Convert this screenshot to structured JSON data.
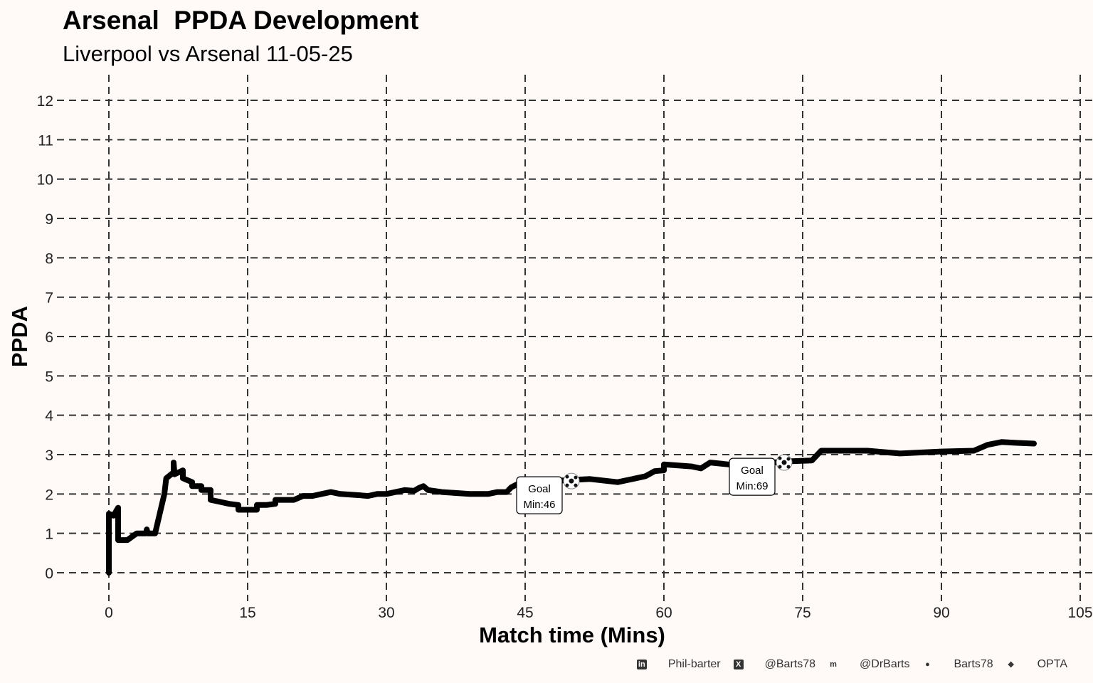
{
  "title": "Arsenal  PPDA Development",
  "subtitle": "Liverpool vs Arsenal 11-05-25",
  "footer": [
    {
      "icon": "linkedin-icon",
      "glyph": "in",
      "text": "Phil-barter"
    },
    {
      "icon": "x-icon",
      "glyph": "X",
      "text": "@Barts78"
    },
    {
      "icon": "mastodon-icon",
      "glyph": "m",
      "text": "@DrBarts"
    },
    {
      "icon": "github-icon",
      "glyph": "●",
      "text": "Barts78"
    },
    {
      "icon": "dropbox-icon",
      "glyph": "❖",
      "text": "OPTA"
    }
  ],
  "chart_data": {
    "type": "line",
    "title": "Arsenal  PPDA Development",
    "xlabel": "Match time (Mins)",
    "ylabel": "PPDA",
    "xlim": [
      0,
      105
    ],
    "ylim": [
      0,
      12
    ],
    "xticks": [
      0,
      15,
      30,
      45,
      60,
      75,
      90,
      105
    ],
    "yticks": [
      0,
      1,
      2,
      3,
      4,
      5,
      6,
      7,
      8,
      9,
      10,
      11,
      12
    ],
    "grid": true,
    "line_color": "#000000",
    "series": [
      {
        "name": "Arsenal PPDA",
        "x": [
          0,
          0,
          0.5,
          1,
          1,
          2,
          3,
          4,
          4.1,
          4.2,
          5,
          6,
          6.2,
          7,
          7,
          7.1,
          8,
          8,
          9,
          9,
          10,
          10,
          11,
          11,
          12,
          13,
          14,
          14,
          15,
          16,
          16,
          17,
          18,
          18,
          20,
          21,
          22,
          23,
          24,
          25,
          27,
          28,
          29,
          30,
          31,
          32,
          33,
          33.5,
          34,
          34.5,
          36,
          39,
          41,
          42,
          43,
          43.5,
          45,
          46,
          49.5,
          52,
          55,
          57,
          58,
          59,
          60,
          60,
          63,
          64,
          65,
          67,
          69,
          73.5,
          76,
          77,
          82,
          85.5,
          90,
          93.5,
          95,
          96.5,
          98,
          100
        ],
        "y": [
          0,
          1.5,
          1.45,
          1.65,
          0.83,
          0.83,
          1.0,
          1.0,
          1.1,
          1.0,
          1.0,
          2.0,
          2.4,
          2.55,
          2.8,
          2.5,
          2.6,
          2.4,
          2.3,
          2.2,
          2.2,
          2.1,
          2.1,
          1.85,
          1.8,
          1.75,
          1.72,
          1.6,
          1.6,
          1.6,
          1.72,
          1.72,
          1.75,
          1.85,
          1.85,
          1.95,
          1.95,
          2.0,
          2.05,
          2.0,
          1.97,
          1.95,
          2.0,
          2.0,
          2.05,
          2.1,
          2.08,
          2.15,
          2.2,
          2.1,
          2.05,
          2.0,
          2.0,
          2.05,
          2.05,
          2.17,
          2.35,
          2.3,
          2.35,
          2.38,
          2.3,
          2.4,
          2.45,
          2.58,
          2.6,
          2.75,
          2.7,
          2.65,
          2.8,
          2.75,
          2.75,
          2.83,
          2.85,
          3.1,
          3.1,
          3.03,
          3.08,
          3.1,
          3.25,
          3.32,
          3.3,
          3.28
        ]
      }
    ],
    "annotations": [
      {
        "label": "Goal",
        "minute_text": "Min:46",
        "x": 46,
        "y": 1.95,
        "ball_x": 50,
        "ball_y": 2.33
      },
      {
        "label": "Goal",
        "minute_text": "Min:69",
        "x": 69,
        "y": 2.42,
        "ball_x": 73,
        "ball_y": 2.8
      }
    ]
  }
}
